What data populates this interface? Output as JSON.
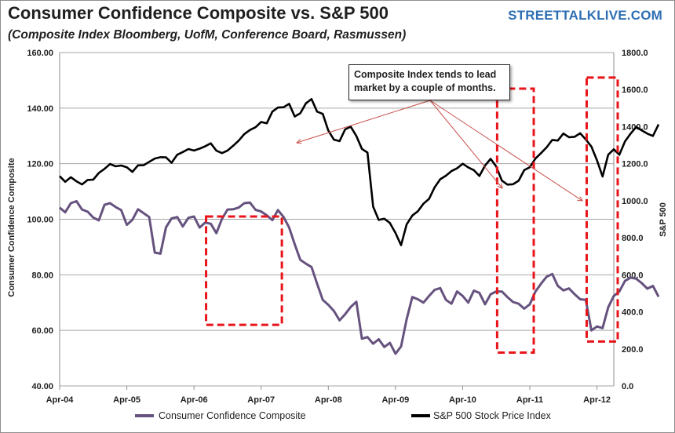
{
  "header": {
    "title": "Consumer Confidence Composite vs. S&P 500",
    "subtitle": "(Composite Index Bloomberg, UofM, Conference Board, Rasmussen)",
    "brand": "STREETTALKLIVE.COM"
  },
  "annotation": {
    "text_line1": "Composite Index tends to lead",
    "text_line2": "market by a couple of months."
  },
  "colors": {
    "confidence": "#66527e",
    "sp500": "#000000",
    "highlight": "#e8141a",
    "arrow": "#c8504a",
    "grid": "#a6a6a6"
  },
  "chart_data": {
    "type": "line",
    "title": "Consumer Confidence Composite vs. S&P 500",
    "x_ticks": [
      "Apr-04",
      "Apr-05",
      "Apr-06",
      "Apr-07",
      "Apr-08",
      "Apr-09",
      "Apr-10",
      "Apr-11",
      "Apr-12"
    ],
    "x_start": "Apr-04",
    "x_end": "Jul-12",
    "y_left": {
      "label": "Consumer Confidence Composite",
      "min": 40,
      "max": 160,
      "step": 20,
      "tick_labels": [
        "40.00",
        "60.00",
        "80.00",
        "100.00",
        "120.00",
        "140.00",
        "160.00"
      ]
    },
    "y_right": {
      "label": "S&P 500",
      "min": 0,
      "max": 1800,
      "step": 200,
      "tick_labels": [
        "0.0",
        "200.0",
        "400.0",
        "600.0",
        "800.0",
        "1000.0",
        "1200.0",
        "1400.0",
        "1600.0",
        "1800.0"
      ]
    },
    "series": [
      {
        "name": "Consumer Confidence Composite",
        "axis": "left",
        "values": [
          104.2,
          102.5,
          105.8,
          106.5,
          103.5,
          102.7,
          100.6,
          99.6,
          105.2,
          105.8,
          104.4,
          103.3,
          98.0,
          99.8,
          103.6,
          102.2,
          100.8,
          88.0,
          87.6,
          97.1,
          100.3,
          100.8,
          97.4,
          100.5,
          101.0,
          97.0,
          98.8,
          98.4,
          95.0,
          100.1,
          103.5,
          103.6,
          104.2,
          105.8,
          106.0,
          103.4,
          102.8,
          101.4,
          99.7,
          103.3,
          100.8,
          97.0,
          91.0,
          85.4,
          84.0,
          82.8,
          76.8,
          71.0,
          69.2,
          67.0,
          63.6,
          65.8,
          68.4,
          70.3,
          57.0,
          57.6,
          55.2,
          56.8,
          54.0,
          55.5,
          51.6,
          54.2,
          64.0,
          72.0,
          71.2,
          70.0,
          72.4,
          74.6,
          75.2,
          71.0,
          69.6,
          74.0,
          72.4,
          70.0,
          74.3,
          73.5,
          69.4,
          73.0,
          74.0,
          74.0,
          72.0,
          70.2,
          69.6,
          67.8,
          69.4,
          74.0,
          76.8,
          79.3,
          80.3,
          76.0,
          74.4,
          75.1,
          73.0,
          71.2,
          71.0,
          60.0,
          61.4,
          60.8,
          68.3,
          72.4,
          74.0,
          77.8,
          79.0,
          78.6,
          77.0,
          75.0,
          76.0,
          72.1
        ]
      },
      {
        "name": "S&P 500 Stock Price Index",
        "axis": "right",
        "values": [
          1133,
          1102,
          1127,
          1105,
          1088,
          1112,
          1114,
          1150,
          1172,
          1198,
          1186,
          1190,
          1181,
          1156,
          1191,
          1192,
          1210,
          1228,
          1235,
          1234,
          1205,
          1248,
          1263,
          1279,
          1271,
          1281,
          1294,
          1310,
          1270,
          1257,
          1271,
          1297,
          1325,
          1360,
          1382,
          1397,
          1425,
          1418,
          1481,
          1503,
          1505,
          1523,
          1455,
          1472,
          1526,
          1549,
          1481,
          1469,
          1379,
          1330,
          1322,
          1385,
          1400,
          1350,
          1280,
          1260,
          968,
          896,
          903,
          880,
          826,
          760,
          872,
          920,
          943,
          984,
          1010,
          1073,
          1116,
          1135,
          1160,
          1175,
          1200,
          1180,
          1165,
          1134,
          1190,
          1226,
          1185,
          1109,
          1087,
          1089,
          1108,
          1165,
          1181,
          1228,
          1257,
          1288,
          1328,
          1325,
          1363,
          1343,
          1345,
          1364,
          1331,
          1292,
          1218,
          1131,
          1248,
          1278,
          1248,
          1320,
          1362,
          1398,
          1380,
          1362,
          1350,
          1412
        ]
      }
    ],
    "highlight_ranges": [
      {
        "from": "Jul-06",
        "to": "Jul-07"
      },
      {
        "from": "Nov-10",
        "to": "Apr-11"
      },
      {
        "from": "Mar-12",
        "to": "Jul-12"
      }
    ],
    "legend": {
      "position": "bottom",
      "entries": [
        "Consumer Confidence Composite",
        "S&P 500 Stock Price Index"
      ]
    },
    "grid": true
  }
}
